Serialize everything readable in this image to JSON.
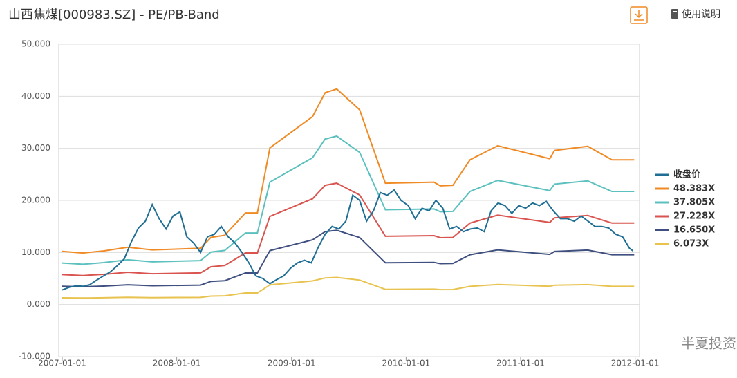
{
  "chart_data": {
    "type": "line",
    "title": "山西焦煤[000983.SZ] - PE/PB-Band",
    "help": "使用说明",
    "watermark": "半夏投资",
    "legend": "right",
    "grid": true,
    "xlim": [
      "2006-12-21",
      "2012-01-15"
    ],
    "xticks": [
      "2007-01-01",
      "2008-01-01",
      "2009-01-01",
      "2010-01-01",
      "2011-01-01",
      "2012-01-01"
    ],
    "ylim": [
      -10,
      50
    ],
    "yticks": [
      {
        "value": -10,
        "label": "-10.000"
      },
      {
        "value": 0,
        "label": "0.000"
      },
      {
        "value": 10,
        "label": "10.000"
      },
      {
        "value": 20,
        "label": "20.000"
      },
      {
        "value": 30,
        "label": "30.000"
      },
      {
        "value": 40,
        "label": "40.000"
      },
      {
        "value": 50,
        "label": "50.000"
      }
    ],
    "x": [
      "2007-01-01",
      "2007-03-08",
      "2007-05-13",
      "2007-07-29",
      "2007-10-15",
      "2008-03-17",
      "2008-04-19",
      "2008-06-02",
      "2008-08-07",
      "2008-09-14",
      "2008-10-24",
      "2009-03-09",
      "2009-04-18",
      "2009-05-25",
      "2009-08-06",
      "2009-10-27",
      "2010-03-31",
      "2010-04-20",
      "2010-05-30",
      "2010-07-24",
      "2010-10-20",
      "2011-04-04",
      "2011-04-19",
      "2011-08-03",
      "2011-10-19",
      "2011-12-29"
    ],
    "series": [
      {
        "name": "收盘价",
        "color": "#1f6e94",
        "x": [
          "2007-01-01",
          "2007-01-23",
          "2007-02-14",
          "2007-03-08",
          "2007-03-30",
          "2007-04-21",
          "2007-05-13",
          "2007-06-04",
          "2007-06-26",
          "2007-07-18",
          "2007-08-09",
          "2007-09-01",
          "2007-09-23",
          "2007-10-15",
          "2007-11-06",
          "2007-11-28",
          "2007-12-20",
          "2008-01-11",
          "2008-02-02",
          "2008-02-24",
          "2008-03-17",
          "2008-04-08",
          "2008-04-30",
          "2008-05-22",
          "2008-06-13",
          "2008-07-05",
          "2008-07-27",
          "2008-08-18",
          "2008-09-09",
          "2008-10-01",
          "2008-10-24",
          "2008-11-15",
          "2008-12-07",
          "2008-12-29",
          "2009-01-20",
          "2009-02-11",
          "2009-03-05",
          "2009-03-27",
          "2009-04-18",
          "2009-05-10",
          "2009-06-01",
          "2009-06-23",
          "2009-07-15",
          "2009-08-06",
          "2009-08-28",
          "2009-09-19",
          "2009-10-11",
          "2009-11-02",
          "2009-11-24",
          "2009-12-16",
          "2010-01-08",
          "2010-01-30",
          "2010-02-21",
          "2010-03-15",
          "2010-04-06",
          "2010-04-28",
          "2010-05-20",
          "2010-06-11",
          "2010-07-03",
          "2010-07-25",
          "2010-08-16",
          "2010-09-07",
          "2010-09-29",
          "2010-10-21",
          "2010-11-12",
          "2010-12-04",
          "2010-12-26",
          "2011-01-17",
          "2011-02-08",
          "2011-03-02",
          "2011-03-24",
          "2011-04-15",
          "2011-05-08",
          "2011-05-30",
          "2011-06-21",
          "2011-07-13",
          "2011-08-04",
          "2011-08-26",
          "2011-09-17",
          "2011-10-09",
          "2011-10-31",
          "2011-11-22",
          "2011-12-14",
          "2011-12-25"
        ],
        "values": [
          2.8,
          3.3,
          3.6,
          3.5,
          3.8,
          4.7,
          5.5,
          6.3,
          7.5,
          8.8,
          12,
          14.7,
          16,
          19.2,
          16.5,
          14.5,
          17,
          17.8,
          13,
          11.8,
          10,
          13,
          13.5,
          15,
          13,
          11.8,
          10,
          8,
          5.5,
          5,
          4.0,
          4.8,
          5.5,
          7,
          8,
          8.5,
          8,
          11,
          13.5,
          15,
          14.5,
          16,
          21,
          20,
          16,
          18,
          21.5,
          21,
          22,
          20,
          19,
          16.5,
          18.5,
          18,
          20,
          18.5,
          14.5,
          15,
          14,
          14.5,
          14.7,
          14,
          18,
          19.5,
          19,
          17.5,
          19,
          18.5,
          19.5,
          19,
          19.8,
          18,
          16.5,
          16.5,
          16,
          17,
          16,
          15,
          15,
          14.7,
          13.5,
          13,
          10.8,
          10.3
        ]
      },
      {
        "name": "48.383X",
        "color": "#f08a24",
        "values": [
          10.2,
          9.9,
          10.3,
          11.0,
          10.5,
          10.8,
          12.9,
          13.3,
          17.6,
          17.6,
          30.1,
          36.1,
          40.7,
          41.4,
          37.4,
          23.3,
          23.5,
          22.8,
          22.9,
          27.8,
          30.5,
          28.0,
          29.6,
          30.4,
          27.8,
          27.8
        ]
      },
      {
        "name": "37.805X",
        "color": "#5bc0be",
        "values": [
          7.97,
          7.74,
          8.05,
          8.6,
          8.2,
          8.44,
          10.08,
          10.39,
          13.75,
          13.75,
          23.52,
          28.21,
          31.8,
          32.35,
          29.22,
          18.21,
          18.36,
          17.82,
          17.89,
          21.72,
          23.83,
          21.88,
          23.13,
          23.75,
          21.72,
          21.72
        ]
      },
      {
        "name": "27.228X",
        "color": "#d9534f",
        "values": [
          5.74,
          5.57,
          5.8,
          6.19,
          5.91,
          6.08,
          7.26,
          7.49,
          9.91,
          9.91,
          16.94,
          20.32,
          22.91,
          23.3,
          21.05,
          13.11,
          13.23,
          12.83,
          12.89,
          15.65,
          17.17,
          15.76,
          16.66,
          17.11,
          15.65,
          15.65
        ]
      },
      {
        "name": "16.650X",
        "color": "#3f4f7f",
        "values": [
          3.51,
          3.41,
          3.54,
          3.79,
          3.61,
          3.72,
          4.44,
          4.58,
          6.06,
          6.06,
          10.36,
          12.42,
          14.0,
          14.25,
          12.87,
          8.02,
          8.09,
          7.85,
          7.88,
          9.57,
          10.5,
          9.63,
          10.19,
          10.46,
          9.57,
          9.57
        ]
      },
      {
        "name": "6.073X",
        "color": "#e8c34f",
        "values": [
          1.28,
          1.24,
          1.29,
          1.38,
          1.32,
          1.36,
          1.62,
          1.67,
          2.21,
          2.21,
          3.78,
          4.53,
          5.11,
          5.2,
          4.69,
          2.92,
          2.95,
          2.86,
          2.87,
          3.49,
          3.83,
          3.51,
          3.71,
          3.82,
          3.49,
          3.49
        ]
      }
    ]
  }
}
